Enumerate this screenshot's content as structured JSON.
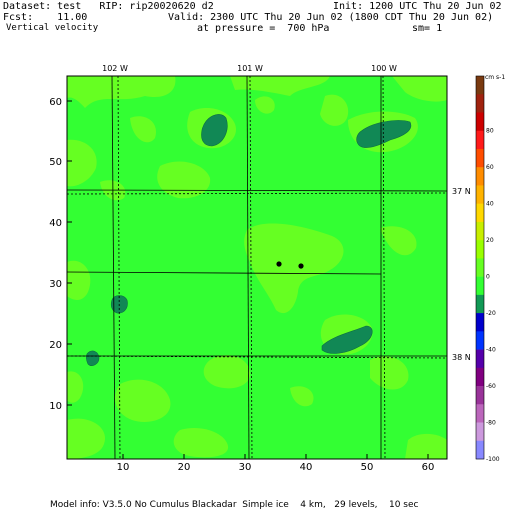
{
  "header": {
    "dataset": "Dataset: test   RIP: rip20020620 d2",
    "fcst": "Fcst:    11.00",
    "variable": "Vertical velocity",
    "init": "Init: 1200 UTC Thu 20 Jun 02",
    "valid": "Valid: 2300 UTC Thu 20 Jun 02 (1800 CDT Thu 20 Jun 02)",
    "pressure": "at pressure =  700 hPa",
    "sm": "sm= 1"
  },
  "map": {
    "longitude_labels": [
      "102 W",
      "101 W",
      "100 W"
    ],
    "latitude_labels": [
      "37 N",
      "38 N"
    ],
    "grid_x_ticks": [
      "10",
      "20",
      "30",
      "40",
      "50",
      "60"
    ],
    "grid_y_ticks": [
      "10",
      "20",
      "30",
      "40",
      "50",
      "60"
    ],
    "colors": {
      "light_green": "#33ff33",
      "yellow_green": "#66ff22",
      "dark_green": "#118855"
    }
  },
  "colorbar": {
    "units": "cm s-1",
    "labels": [
      "80",
      "60",
      "40",
      "20",
      "0",
      "-20",
      "-40",
      "-60",
      "-80",
      "-100"
    ],
    "colors": [
      "#7a3a10",
      "#a0220f",
      "#cc0000",
      "#ff1a1a",
      "#ff4d00",
      "#ff8c00",
      "#ffb300",
      "#ffd800",
      "#c8ee00",
      "#99ff00",
      "#66ff22",
      "#33ff33",
      "#119955",
      "#0000cc",
      "#0033ff",
      "#5500aa",
      "#800080",
      "#993399",
      "#bb66bb",
      "#cc99dd",
      "#8888ff"
    ]
  },
  "footer": {
    "model_info": "Model info: V3.5.0 No Cumulus Blackadar  Simple ice    4 km,   29 levels,    10 sec"
  }
}
